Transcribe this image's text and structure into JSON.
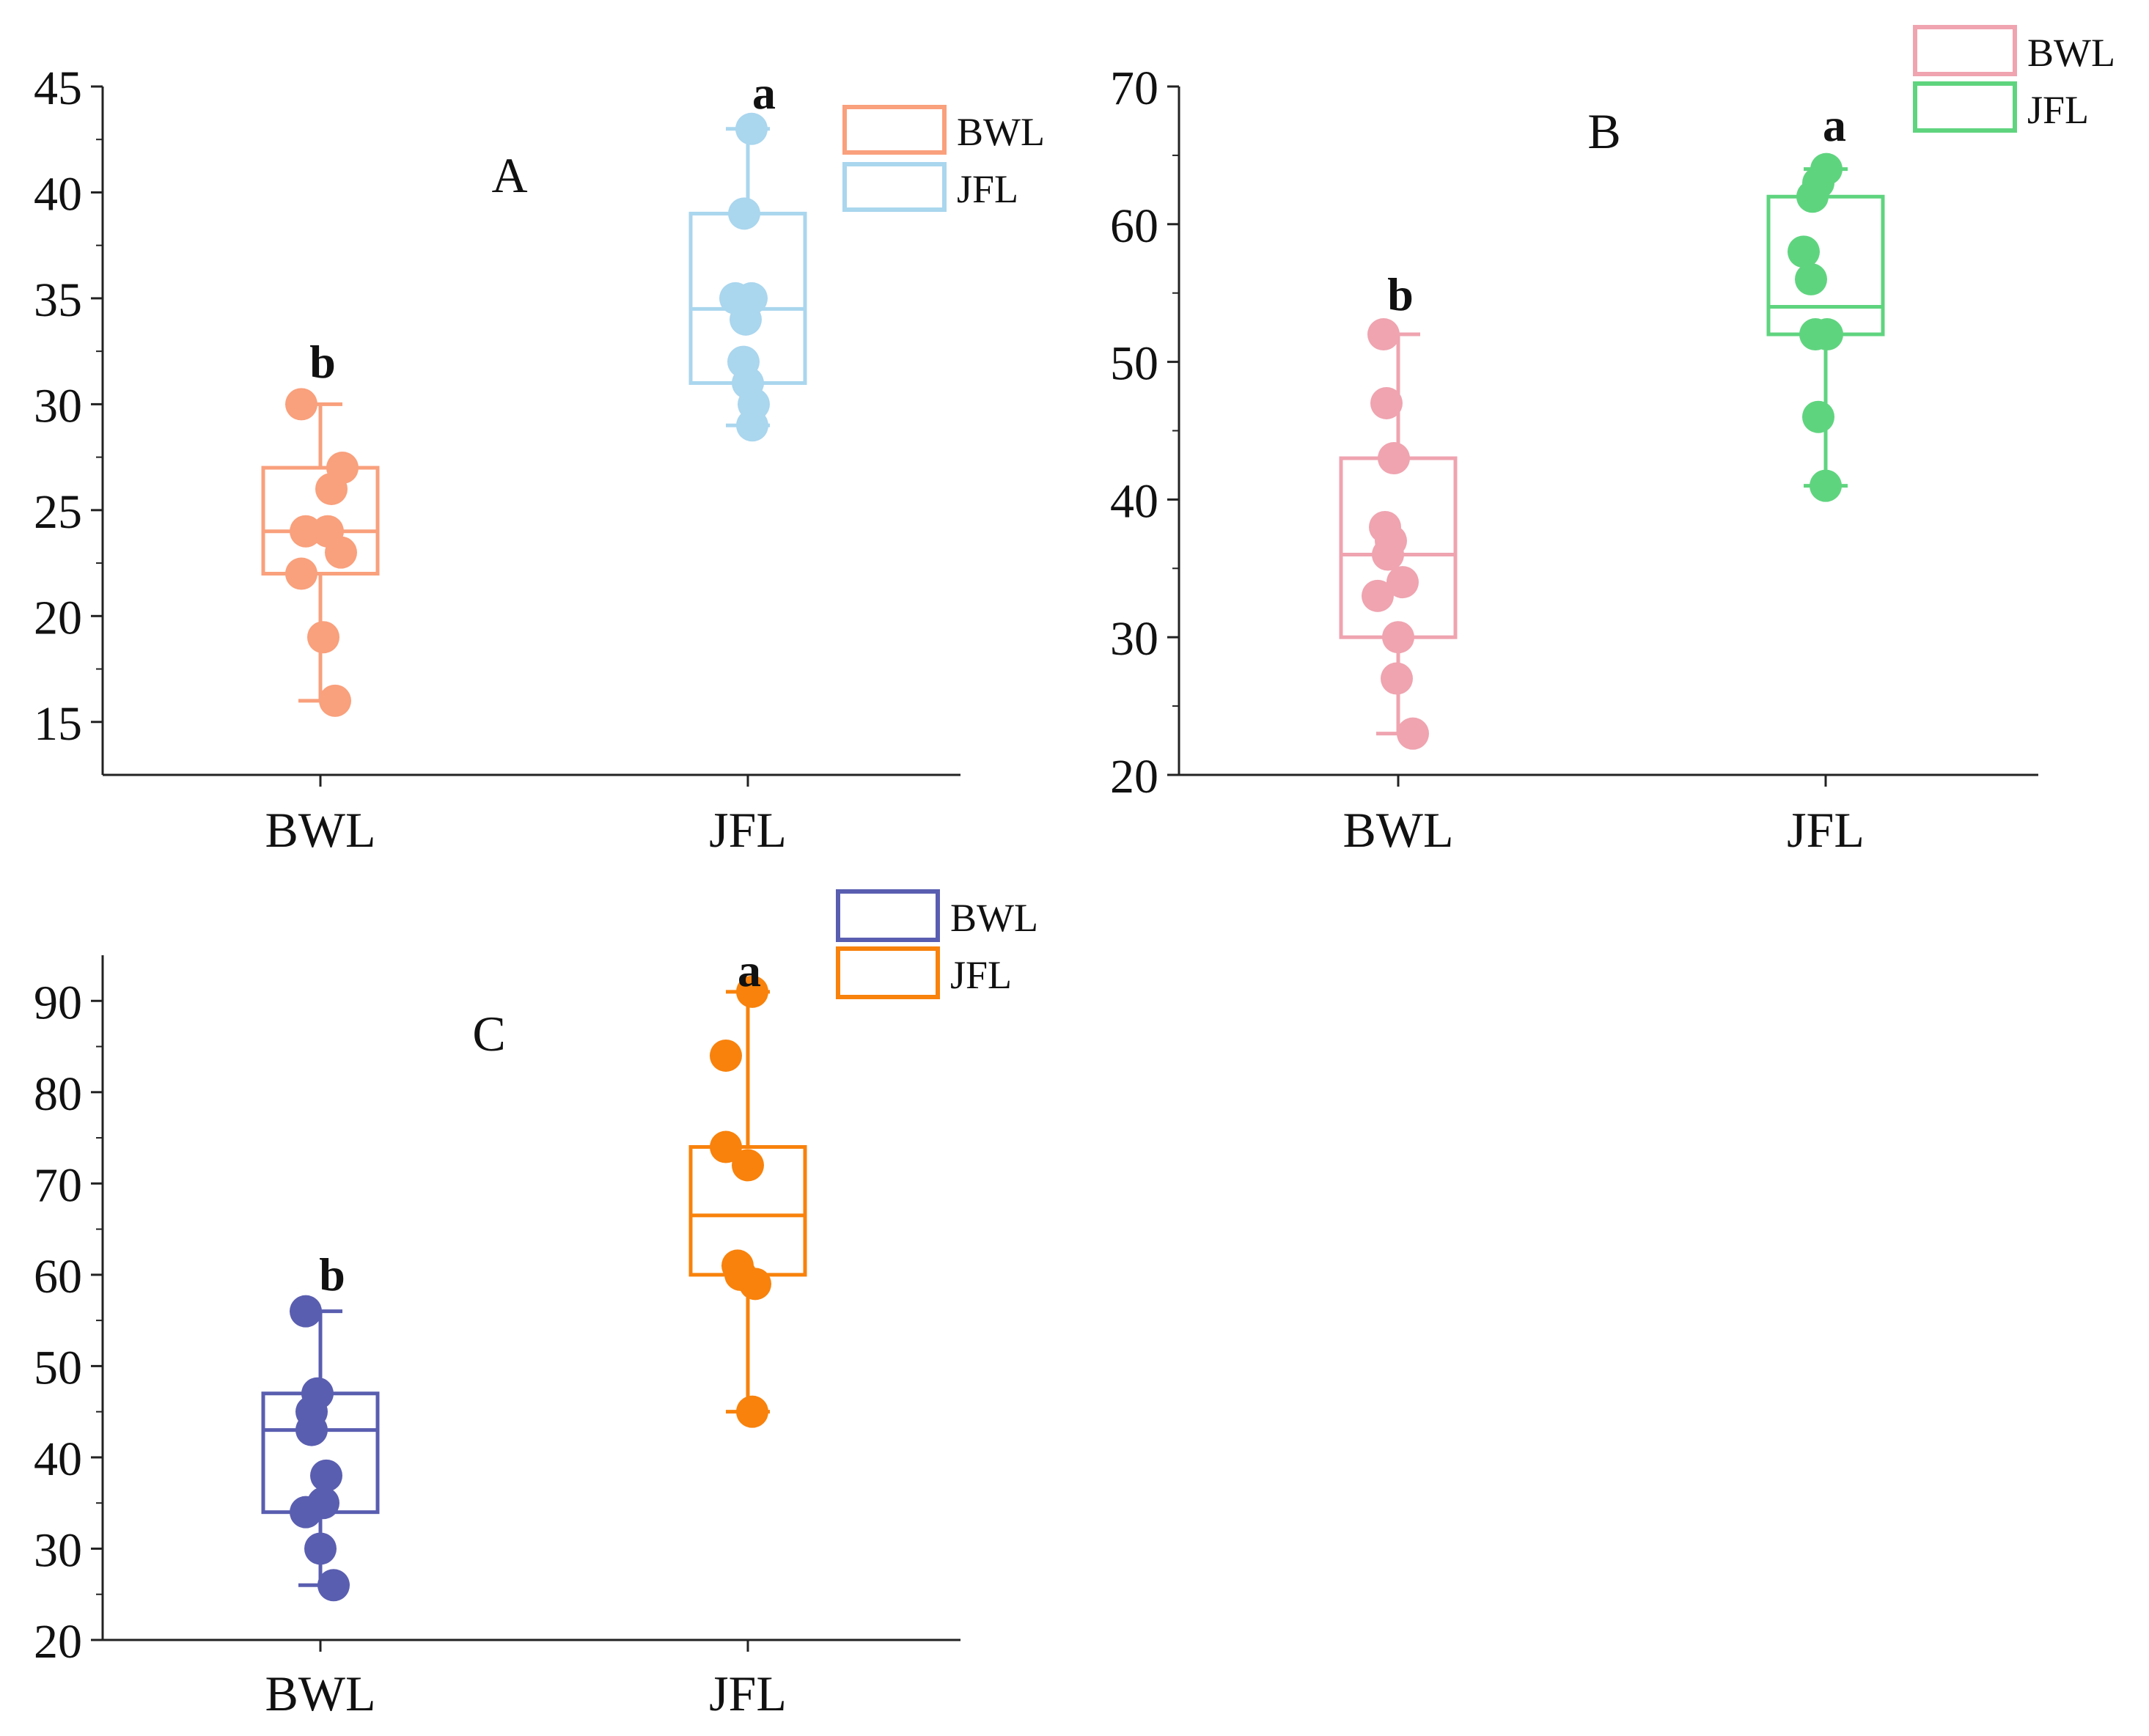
{
  "chart_data": [
    {
      "type": "box",
      "panel_label": "A",
      "categories": [
        "BWL",
        "JFL"
      ],
      "ylim": [
        12.5,
        45
      ],
      "yticks": [
        15,
        20,
        25,
        30,
        35,
        40,
        45
      ],
      "grid": false,
      "legend_position": "top-right",
      "series": [
        {
          "name": "BWL",
          "color": "#F9A07C",
          "letter": "b",
          "whisker_low": 16,
          "q1": 22,
          "median": 24,
          "q3": 27,
          "whisker_high": 30,
          "points": [
            30,
            27,
            26,
            24,
            24,
            23,
            22,
            19,
            16
          ]
        },
        {
          "name": "JFL",
          "color": "#AAD6EE",
          "letter": "a",
          "whisker_low": 29,
          "q1": 31,
          "median": 34.5,
          "q3": 39,
          "whisker_high": 43,
          "points": [
            43,
            39,
            35,
            35,
            34,
            32,
            31,
            30,
            29
          ]
        }
      ]
    },
    {
      "type": "box",
      "panel_label": "B",
      "categories": [
        "BWL",
        "JFL"
      ],
      "ylim": [
        20,
        70
      ],
      "yticks": [
        20,
        30,
        40,
        50,
        60,
        70
      ],
      "grid": false,
      "legend_position": "top-right",
      "series": [
        {
          "name": "BWL",
          "color": "#EFA4B0",
          "letter": "b",
          "whisker_low": 23,
          "q1": 30,
          "median": 36,
          "q3": 43,
          "whisker_high": 52,
          "points": [
            52,
            47,
            43,
            38,
            37,
            36,
            34,
            33,
            30,
            27,
            23
          ]
        },
        {
          "name": "JFL",
          "color": "#5FD47F",
          "letter": "a",
          "whisker_low": 41,
          "q1": 52,
          "median": 54,
          "q3": 62,
          "whisker_high": 64,
          "points": [
            64,
            63,
            62,
            58,
            56,
            52,
            52,
            46,
            41
          ]
        }
      ]
    },
    {
      "type": "box",
      "panel_label": "C",
      "categories": [
        "BWL",
        "JFL"
      ],
      "ylim": [
        20,
        95
      ],
      "yticks": [
        20,
        30,
        40,
        50,
        60,
        70,
        80,
        90
      ],
      "grid": false,
      "legend_position": "top-right",
      "series": [
        {
          "name": "BWL",
          "color": "#5A5EB0",
          "letter": "b",
          "whisker_low": 26,
          "q1": 34,
          "median": 43,
          "q3": 47,
          "whisker_high": 56,
          "points": [
            56,
            47,
            45,
            43,
            38,
            35,
            34,
            30,
            26
          ]
        },
        {
          "name": "JFL",
          "color": "#F8820C",
          "letter": "a",
          "whisker_low": 45,
          "q1": 60,
          "median": 66.5,
          "q3": 74,
          "whisker_high": 91,
          "points": [
            91,
            84,
            74,
            72,
            61,
            60,
            59,
            45
          ]
        }
      ]
    }
  ]
}
